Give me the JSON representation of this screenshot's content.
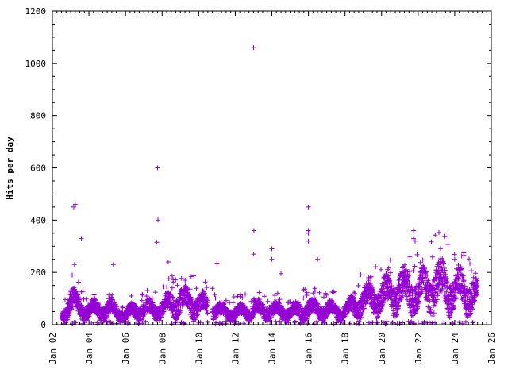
{
  "chart_data": {
    "type": "scatter",
    "title": "",
    "xlabel": "",
    "ylabel": "Hits per day",
    "ylim": [
      0,
      1200
    ],
    "xlim": [
      "Jan 02",
      "Jan 26"
    ],
    "grid": false,
    "legend": "none",
    "marker": "plus",
    "colors": {
      "points": "#9400d3",
      "axis": "#000000",
      "background": "#ffffff"
    },
    "y_ticks": [
      0,
      200,
      400,
      600,
      800,
      1000,
      1200
    ],
    "y_tick_labels": [
      "0",
      "200",
      "400",
      "600",
      "800",
      "1000",
      "1200"
    ],
    "x_ticks": [
      "Jan 02",
      "Jan 04",
      "Jan 06",
      "Jan 08",
      "Jan 10",
      "Jan 12",
      "Jan 14",
      "Jan 16",
      "Jan 18",
      "Jan 20",
      "Jan 22",
      "Jan 24",
      "Jan 26"
    ],
    "x_tick_labels": [
      "Jan 02",
      "Jan 04",
      "Jan 06",
      "Jan 08",
      "Jan 10",
      "Jan 12",
      "Jan 14",
      "Jan 16",
      "Jan 18",
      "Jan 20",
      "Jan 22",
      "Jan 24",
      "Jan 26"
    ],
    "typical_level": [
      {
        "x": "Jan 02 12:00",
        "y": 30
      },
      {
        "x": "Jan 03 00:00",
        "y": 90
      },
      {
        "x": "Jan 03 12:00",
        "y": 65
      },
      {
        "x": "Jan 04 00:00",
        "y": 55
      },
      {
        "x": "Jan 05 00:00",
        "y": 60
      },
      {
        "x": "Jan 05 12:00",
        "y": 50
      },
      {
        "x": "Jan 06 00:00",
        "y": 35
      },
      {
        "x": "Jan 06 12:00",
        "y": 55
      },
      {
        "x": "Jan 07 00:00",
        "y": 55
      },
      {
        "x": "Jan 08 00:00",
        "y": 60
      },
      {
        "x": "Jan 08 12:00",
        "y": 80
      },
      {
        "x": "Jan 09 00:00",
        "y": 90
      },
      {
        "x": "Jan 10 00:00",
        "y": 75
      },
      {
        "x": "Jan 10 12:00",
        "y": 70
      },
      {
        "x": "Jan 11 00:00",
        "y": 50
      },
      {
        "x": "Jan 12 00:00",
        "y": 45
      },
      {
        "x": "Jan 13 00:00",
        "y": 55
      },
      {
        "x": "Jan 14 00:00",
        "y": 55
      },
      {
        "x": "Jan 15 00:00",
        "y": 45
      },
      {
        "x": "Jan 16 00:00",
        "y": 60
      },
      {
        "x": "Jan 17 00:00",
        "y": 55
      },
      {
        "x": "Jan 18 00:00",
        "y": 50
      },
      {
        "x": "Jan 19 00:00",
        "y": 90
      },
      {
        "x": "Jan 20 00:00",
        "y": 110
      },
      {
        "x": "Jan 21 00:00",
        "y": 130
      },
      {
        "x": "Jan 22 00:00",
        "y": 120
      },
      {
        "x": "Jan 23 00:00",
        "y": 150
      },
      {
        "x": "Jan 24 00:00",
        "y": 130
      },
      {
        "x": "Jan 25 00:00",
        "y": 120
      },
      {
        "x": "Jan 25 06:00",
        "y": 115
      }
    ],
    "gaps": [
      {
        "from": "Jan 10 12:00",
        "to": "Jan 10 18:00"
      }
    ],
    "outliers": [
      {
        "x": "Jan 03 04:00",
        "y": 450
      },
      {
        "x": "Jan 03 06:00",
        "y": 460
      },
      {
        "x": "Jan 03 05:00",
        "y": 230
      },
      {
        "x": "Jan 03 02:00",
        "y": 190
      },
      {
        "x": "Jan 03 14:00",
        "y": 330
      },
      {
        "x": "Jan 05 08:00",
        "y": 230
      },
      {
        "x": "Jan 07 18:00",
        "y": 600
      },
      {
        "x": "Jan 07 18:30",
        "y": 400
      },
      {
        "x": "Jan 07 17:00",
        "y": 315
      },
      {
        "x": "Jan 08 08:00",
        "y": 240
      },
      {
        "x": "Jan 11 00:00",
        "y": 235
      },
      {
        "x": "Jan 13 00:00",
        "y": 1060
      },
      {
        "x": "Jan 13 00:30",
        "y": 360
      },
      {
        "x": "Jan 13 00:10",
        "y": 270
      },
      {
        "x": "Jan 14 00:00",
        "y": 290
      },
      {
        "x": "Jan 14 00:00",
        "y": 250
      },
      {
        "x": "Jan 14 12:00",
        "y": 195
      },
      {
        "x": "Jan 16 00:00",
        "y": 450
      },
      {
        "x": "Jan 16 00:00",
        "y": 360
      },
      {
        "x": "Jan 16 00:00",
        "y": 350
      },
      {
        "x": "Jan 16 00:00",
        "y": 320
      },
      {
        "x": "Jan 16 12:00",
        "y": 250
      },
      {
        "x": "Jan 21 18:00",
        "y": 360
      },
      {
        "x": "Jan 21 18:00",
        "y": 330
      },
      {
        "x": "Jan 21 20:00",
        "y": 320
      },
      {
        "x": "Jan 24 12:00",
        "y": 275
      },
      {
        "x": "Jan 24 12:00",
        "y": 265
      },
      {
        "x": "Jan 24 00:00",
        "y": 250
      }
    ]
  }
}
